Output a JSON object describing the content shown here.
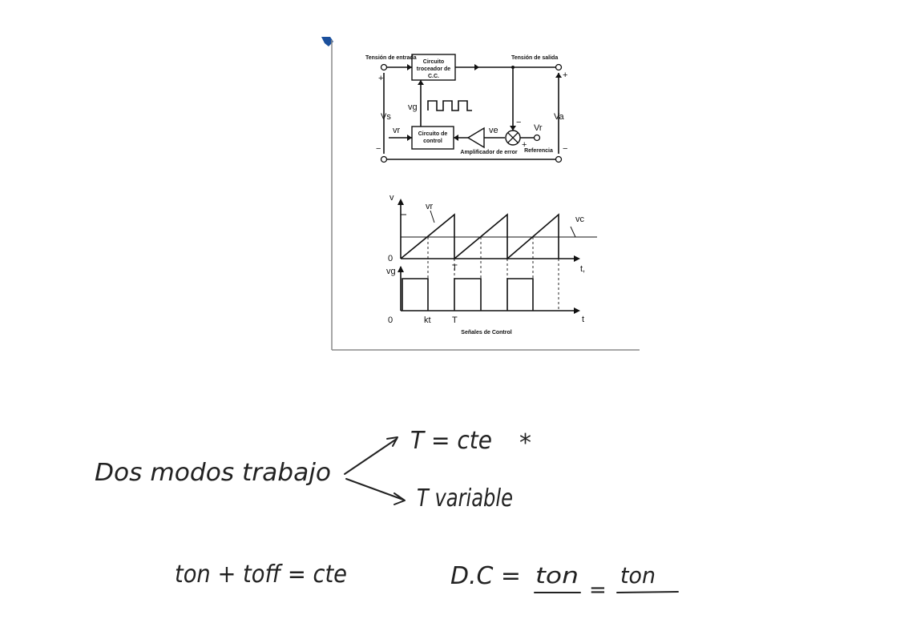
{
  "diagram": {
    "input_label": "Tensión de entrada",
    "output_label": "Tensión de salida",
    "chopper_block": [
      "Circuito",
      "troceador de",
      "C.C."
    ],
    "control_block": [
      "Circuito de",
      "control"
    ],
    "error_amp_label": "Amplificador de error",
    "reference_label": "Referencia",
    "vs": "Vs",
    "va": "Va",
    "vg": "vg",
    "vr": "vr",
    "ve": "ve",
    "vr_ref": "Vr",
    "plus": "+",
    "minus": "−"
  },
  "waveforms": {
    "top_axis_v": "v",
    "vr_label": "vr",
    "vc_label": "vc",
    "zero": "0",
    "T_label": "T",
    "t_label": "t,",
    "vg_axis": "vg",
    "kt_label": "kt",
    "T2_label": "T",
    "t2_label": "t",
    "caption": "Señales de Control"
  },
  "notes": {
    "line1": "Dos modos trabajo",
    "branch1": "T = cte",
    "star": "*",
    "branch2": "T variable",
    "eq1": "ton + toff = cte",
    "eq2_left": "D.C =",
    "eq2_num1": "ton",
    "eq2_eq": "=",
    "eq2_num2": "ton"
  }
}
